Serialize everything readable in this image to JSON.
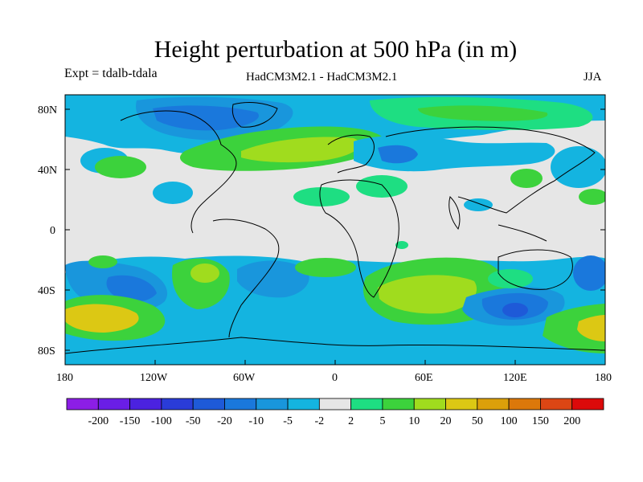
{
  "title": "Height perturbation at 500 hPa (in m)",
  "subtitle_left": "Expt = tdalb-tdala",
  "subtitle_center": "HadCM3M2.1 - HadCM3M2.1",
  "subtitle_right": "JJA",
  "lat_labels": [
    "80N",
    "40N",
    "0",
    "40S",
    "80S"
  ],
  "lon_labels": [
    "180",
    "120W",
    "60W",
    "0",
    "60E",
    "120E",
    "180"
  ],
  "colorbar": {
    "labels": [
      "-200",
      "-150",
      "-100",
      "-50",
      "-20",
      "-10",
      "-5",
      "-2",
      "2",
      "5",
      "10",
      "20",
      "50",
      "100",
      "150",
      "200"
    ],
    "colors": [
      "#8c1ee6",
      "#6a1ee6",
      "#4b22e0",
      "#2a3cd8",
      "#1e5ad8",
      "#1a78dc",
      "#1996dc",
      "#14b4e0",
      "#e6e6e6",
      "#1ede82",
      "#3cd23c",
      "#a0dc1e",
      "#dcc814",
      "#dca00a",
      "#dc780a",
      "#dc4614",
      "#dc0a0a"
    ]
  },
  "colors": {
    "neutral": "#e6e6e6",
    "light_blue": "#14b4e0",
    "mid_blue": "#1996dc",
    "dark_blue": "#1a78dc",
    "deep_blue": "#1e5ad8",
    "light_green": "#1ede82",
    "green": "#3cd23c",
    "lime": "#a0dc1e",
    "yellow": "#dcc814"
  }
}
